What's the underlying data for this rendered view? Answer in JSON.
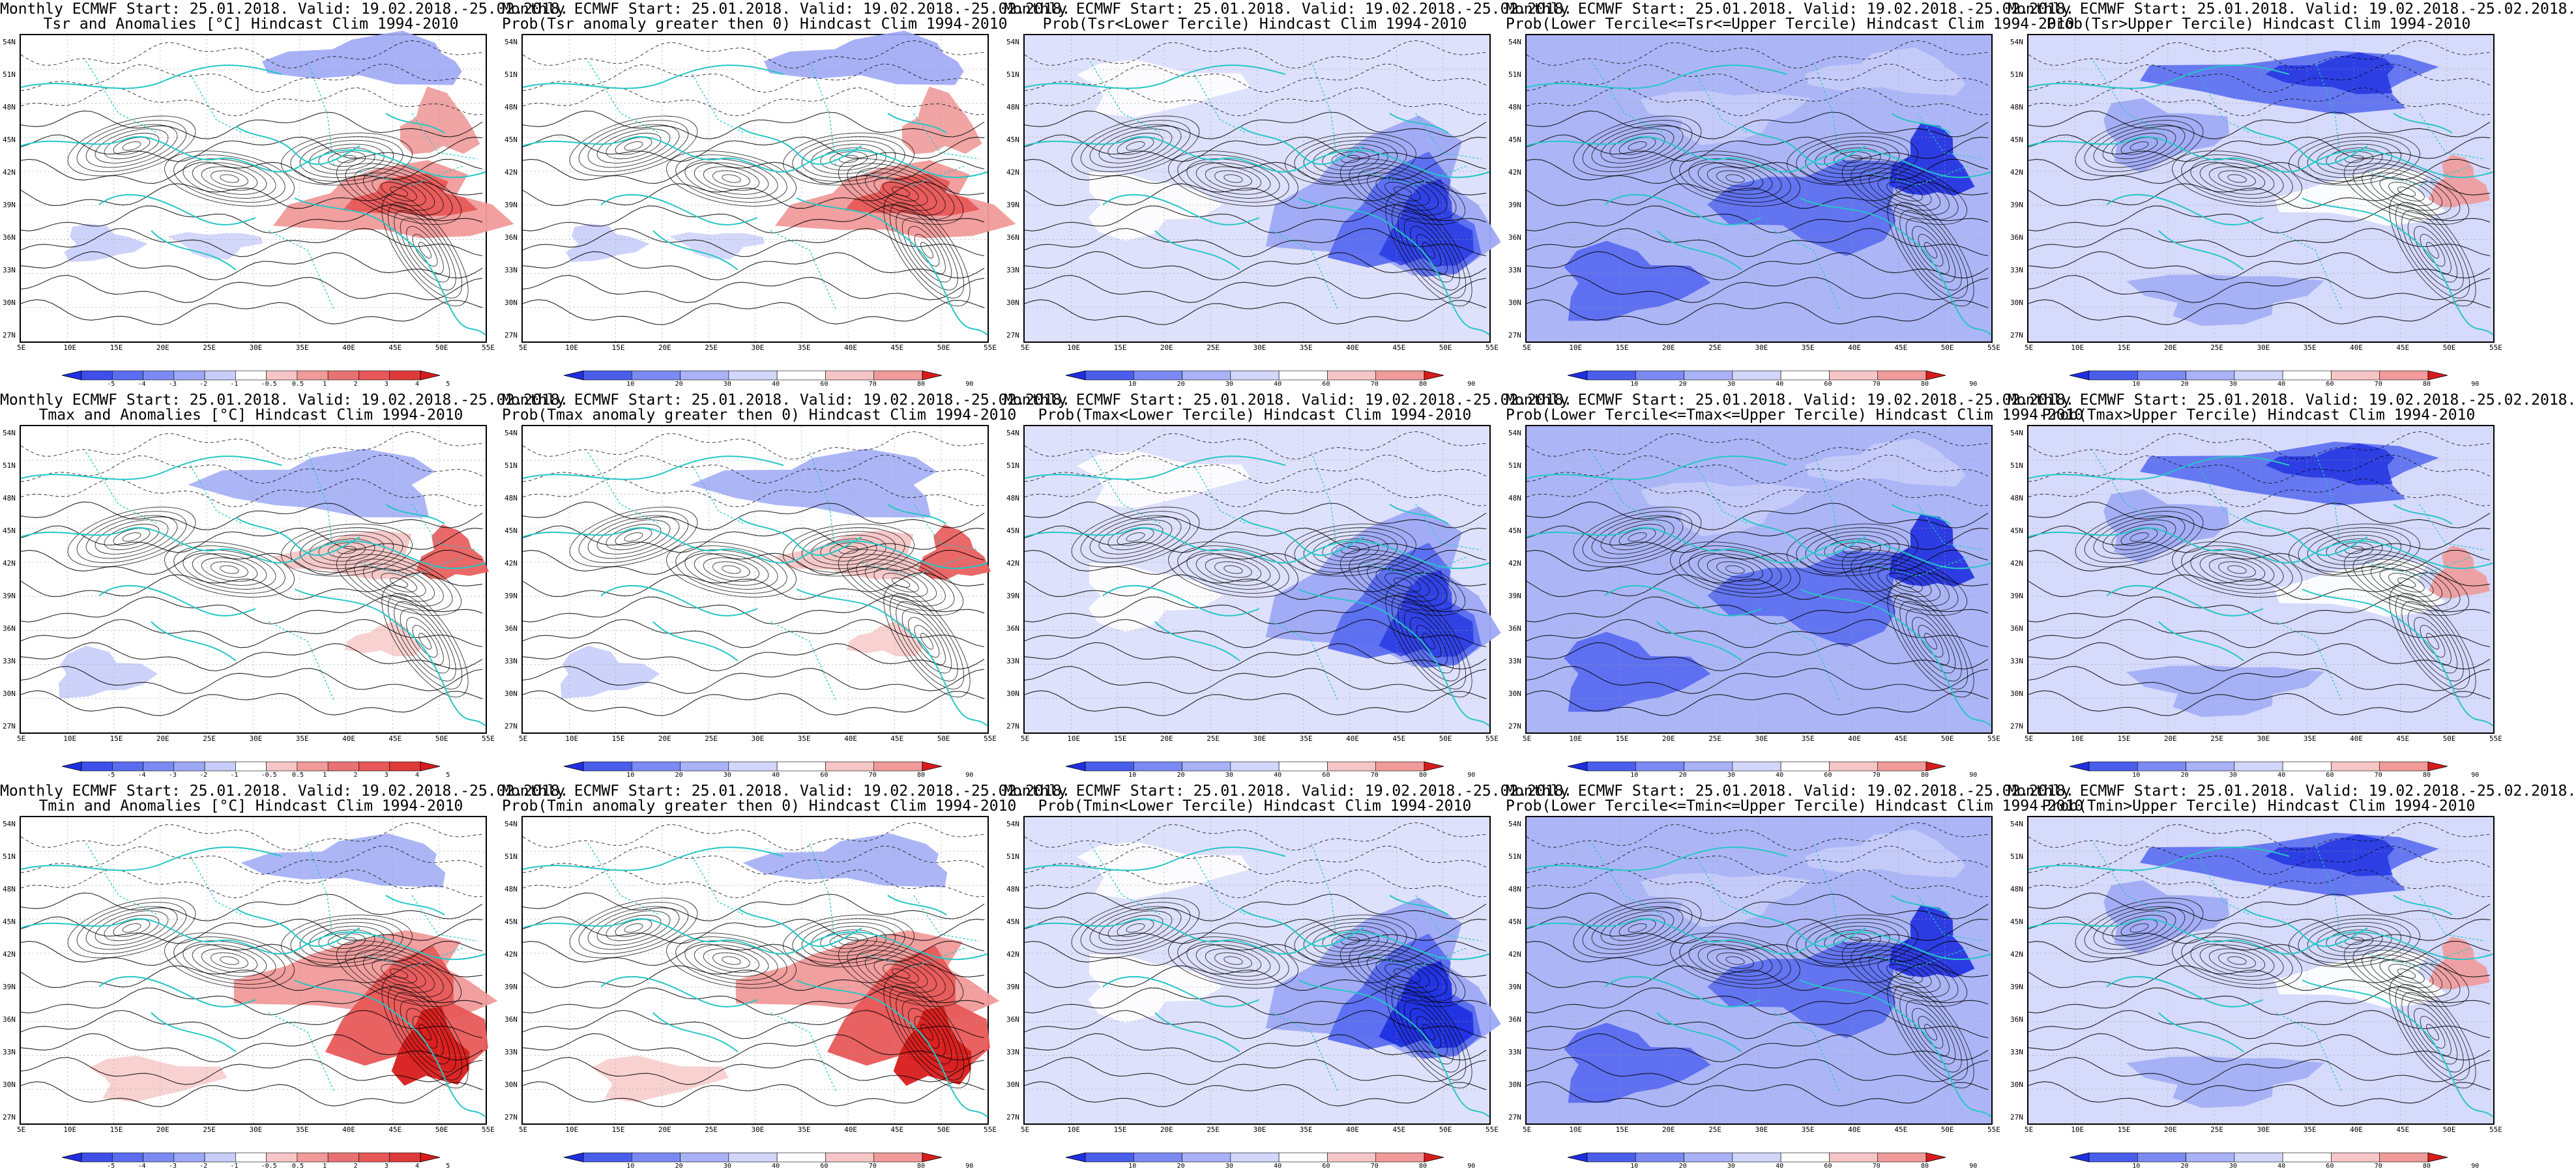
{
  "colors": {
    "blue_deep": "#1f2fe0",
    "blue_mid": "#5a6df0",
    "blue_light": "#9ea9f5",
    "blue_pale": "#c8cdf9",
    "red_pale": "#f6c6c6",
    "red_light": "#f09a9a",
    "red_mid": "#e85858",
    "red_deep": "#d81c1c",
    "coast": "#25c6c6",
    "contour": "#000000"
  },
  "lat_labels": [
    "54N",
    "51N",
    "48N",
    "45N",
    "42N",
    "39N",
    "36N",
    "33N",
    "30N",
    "27N"
  ],
  "lon_labels": [
    "5E",
    "10E",
    "15E",
    "20E",
    "25E",
    "30E",
    "35E",
    "40E",
    "45E",
    "50E",
    "55E"
  ],
  "colorbars": {
    "anomaly": [
      "-5",
      "-4",
      "-3",
      "-2",
      "-1",
      "-0.5",
      "0.5",
      "1",
      "2",
      "3",
      "4",
      "5"
    ],
    "prob": [
      "10",
      "20",
      "30",
      "40",
      "60",
      "70",
      "80",
      "90"
    ]
  },
  "panels": [
    {
      "id": "p00",
      "line1": "Monthly ECMWF Start: 25.01.2018. Valid: 19.02.2018.-25.02.2018.",
      "line2": "Tsr and Anomalies [°C] Hindcast Clim 1994-2010",
      "cbar": "anomaly",
      "pattern": "anom-warm-east"
    },
    {
      "id": "p01",
      "line1": "Monthly ECMWF Start: 25.01.2018. Valid: 19.02.2018.-25.02.2018.",
      "line2": "Prob(Tsr anomaly greater then 0) Hindcast Clim 1994-2010",
      "cbar": "prob",
      "pattern": "prob-warm-east"
    },
    {
      "id": "p02",
      "line1": "Monthly ECMWF Start: 25.01.2018. Valid: 19.02.2018.-25.02.2018.",
      "line2": "Prob(Tsr<Lower Tercile) Hindcast Clim 1994-2010",
      "cbar": "prob",
      "pattern": "lower-tercile"
    },
    {
      "id": "p03",
      "line1": "Monthly ECMWF Start: 25.01.2018. Valid: 19.02.2018.-25.02.2018.",
      "line2": "Prob(Lower Tercile<=Tsr<=Upper Tercile) Hindcast Clim 1994-2010",
      "cbar": "prob",
      "pattern": "middle-tercile"
    },
    {
      "id": "p04",
      "line1": "Monthly ECMWF Start: 25.01.2018. Valid: 19.02.2018.-25.02.2018.",
      "line2": "Prob(Tsr>Upper Tercile) Hindcast Clim 1994-2010",
      "cbar": "prob",
      "pattern": "upper-tercile"
    },
    {
      "id": "p10",
      "line1": "Monthly ECMWF Start: 25.01.2018. Valid: 19.02.2018.-25.02.2018.",
      "line2": "Tmax and Anomalies [°C] Hindcast Clim 1994-2010",
      "cbar": "anomaly",
      "pattern": "anom-mild"
    },
    {
      "id": "p11",
      "line1": "Monthly ECMWF Start: 25.01.2018. Valid: 19.02.2018.-25.02.2018.",
      "line2": "Prob(Tmax anomaly greater then 0) Hindcast Clim 1994-2010",
      "cbar": "prob",
      "pattern": "prob-mild"
    },
    {
      "id": "p12",
      "line1": "Monthly ECMWF Start: 25.01.2018. Valid: 19.02.2018.-25.02.2018.",
      "line2": "Prob(Tmax<Lower Tercile) Hindcast Clim 1994-2010",
      "cbar": "prob",
      "pattern": "lower-tercile"
    },
    {
      "id": "p13",
      "line1": "Monthly ECMWF Start: 25.01.2018. Valid: 19.02.2018.-25.02.2018.",
      "line2": "Prob(Lower Tercile<=Tmax<=Upper Tercile) Hindcast Clim 1994-2010",
      "cbar": "prob",
      "pattern": "middle-tercile"
    },
    {
      "id": "p14",
      "line1": "Monthly ECMWF Start: 25.01.2018. Valid: 19.02.2018.-25.02.2018.",
      "line2": "Prob(Tmax>Upper Tercile) Hindcast Clim 1994-2010",
      "cbar": "prob",
      "pattern": "upper-tercile"
    },
    {
      "id": "p20",
      "line1": "Monthly ECMWF Start: 25.01.2018. Valid: 19.02.2018.-25.02.2018.",
      "line2": "Tmin and Anomalies [°C] Hindcast Clim 1994-2010",
      "cbar": "anomaly",
      "pattern": "anom-warm-strong"
    },
    {
      "id": "p21",
      "line1": "Monthly ECMWF Start: 25.01.2018. Valid: 19.02.2018.-25.02.2018.",
      "line2": "Prob(Tmin anomaly greater then 0) Hindcast Clim 1994-2010",
      "cbar": "prob",
      "pattern": "prob-warm-strong"
    },
    {
      "id": "p22",
      "line1": "Monthly ECMWF Start: 25.01.2018. Valid: 19.02.2018.-25.02.2018.",
      "line2": "Prob(Tmin<Lower Tercile) Hindcast Clim 1994-2010",
      "cbar": "prob",
      "pattern": "lower-tercile-strong"
    },
    {
      "id": "p23",
      "line1": "Monthly ECMWF Start: 25.01.2018. Valid: 19.02.2018.-25.02.2018.",
      "line2": "Prob(Lower Tercile<=Tmin<=Upper Tercile) Hindcast Clim 1994-2010",
      "cbar": "prob",
      "pattern": "middle-tercile"
    },
    {
      "id": "p24",
      "line1": "Monthly ECMWF Start: 25.01.2018. Valid: 19.02.2018.-25.02.2018.",
      "line2": "Prob(Tmin>Upper Tercile) Hindcast Clim 1994-2010",
      "cbar": "prob",
      "pattern": "upper-tercile"
    }
  ]
}
